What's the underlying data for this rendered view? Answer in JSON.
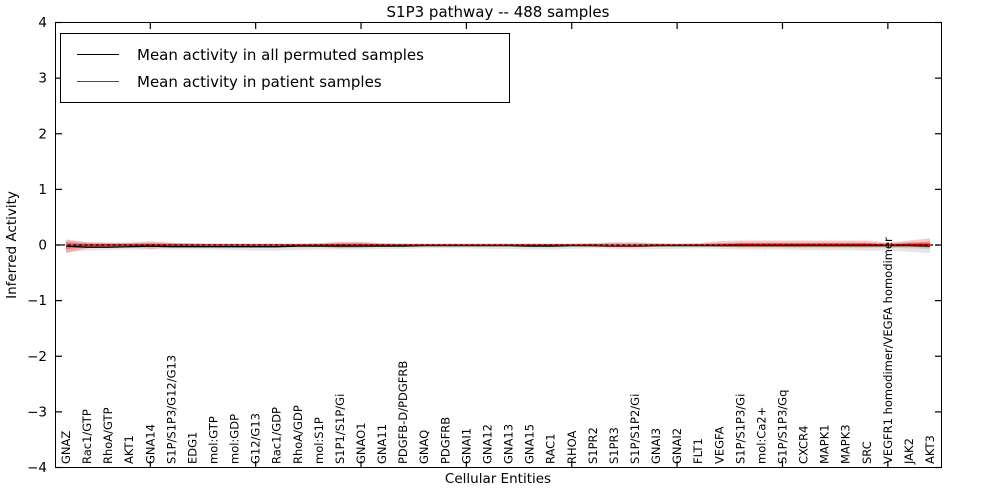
{
  "title": "S1P3 pathway -- 488 samples",
  "xlabel": "Cellular Entities",
  "ylabel": "Inferred Activity",
  "legend": {
    "items": [
      {
        "label": "Mean activity in all permuted samples",
        "color": "#000000"
      },
      {
        "label": "Mean activity in patient samples",
        "color": "#ff0000"
      }
    ]
  },
  "colors": {
    "permuted_line": "#000000",
    "patient_line": "#ff0000",
    "permuted_band_fill": "rgba(0,0,0,0.10)",
    "patient_band_fill": "rgba(255,0,0,0.22)",
    "patient_band_inner_fill": "rgba(255,0,0,0.28)",
    "axis": "#000000",
    "background": "#ffffff"
  },
  "chart_data": {
    "type": "line",
    "title": "S1P3 pathway -- 488 samples",
    "xlabel": "Cellular Entities",
    "ylabel": "Inferred Activity",
    "ylim": [
      -4,
      4
    ],
    "yticks": [
      4,
      3,
      2,
      1,
      0,
      -1,
      -2,
      -3,
      -4
    ],
    "ytick_labels": [
      "4",
      "3",
      "2",
      "1",
      "0",
      "−1",
      "−2",
      "−3",
      "−4"
    ],
    "x_major_tick_indices": [
      4,
      9,
      14,
      19,
      24,
      29,
      34,
      39
    ],
    "zero_reference_line": "dashed",
    "legend_position": "upper left",
    "grid": false,
    "categories": [
      "GNAZ",
      "Rac1/GTP",
      "RhoA/GTP",
      "AKT1",
      "GNA14",
      "S1P/S1P3/G12/G13",
      "EDG1",
      "mol:GTP",
      "mol:GDP",
      "G12/G13",
      "Rac1/GDP",
      "RhoA/GDP",
      "mol:S1P",
      "S1P1/S1P/Gi",
      "GNAO1",
      "GNA11",
      "PDGFB-D/PDGFRB",
      "GNAQ",
      "PDGFRB",
      "GNAI1",
      "GNA12",
      "GNA13",
      "GNA15",
      "RAC1",
      "RHOA",
      "S1PR2",
      "S1PR3",
      "S1P/S1P2/Gi",
      "GNAI3",
      "GNAI2",
      "FLT1",
      "VEGFA",
      "S1P/S1P3/Gi",
      "mol:Ca2+",
      "S1P/S1P3/Gq",
      "CXCR4",
      "MAPK1",
      "MAPK3",
      "SRC",
      "VEGFR1 homodimer/VEGFA homodimer",
      "JAK2",
      "AKT3"
    ],
    "series": [
      {
        "name": "Mean activity in all permuted samples",
        "color": "#000000",
        "values": [
          -0.02,
          -0.04,
          -0.04,
          -0.03,
          -0.02,
          -0.03,
          -0.03,
          -0.03,
          -0.03,
          -0.03,
          -0.03,
          -0.02,
          -0.02,
          -0.02,
          -0.02,
          -0.02,
          -0.02,
          -0.01,
          -0.01,
          -0.01,
          -0.01,
          -0.01,
          -0.02,
          -0.02,
          -0.01,
          -0.01,
          -0.02,
          -0.02,
          -0.01,
          -0.01,
          -0.01,
          -0.01,
          -0.01,
          -0.01,
          -0.01,
          -0.01,
          -0.01,
          -0.01,
          -0.01,
          -0.01,
          -0.01,
          -0.02
        ],
        "band_upper": [
          0.08,
          0.05,
          0.04,
          0.04,
          0.04,
          0.04,
          0.03,
          0.03,
          0.03,
          0.03,
          0.03,
          0.03,
          0.03,
          0.04,
          0.04,
          0.03,
          0.03,
          0.03,
          0.03,
          0.03,
          0.03,
          0.03,
          0.03,
          0.03,
          0.03,
          0.03,
          0.03,
          0.03,
          0.03,
          0.03,
          0.03,
          0.03,
          0.04,
          0.04,
          0.04,
          0.04,
          0.04,
          0.04,
          0.04,
          0.04,
          0.05,
          0.06
        ],
        "band_lower": [
          -0.13,
          -0.1,
          -0.09,
          -0.08,
          -0.08,
          -0.08,
          -0.08,
          -0.08,
          -0.09,
          -0.1,
          -0.1,
          -0.09,
          -0.08,
          -0.08,
          -0.08,
          -0.07,
          -0.07,
          -0.06,
          -0.06,
          -0.06,
          -0.07,
          -0.07,
          -0.08,
          -0.08,
          -0.07,
          -0.06,
          -0.07,
          -0.08,
          -0.07,
          -0.07,
          -0.06,
          -0.07,
          -0.08,
          -0.08,
          -0.08,
          -0.09,
          -0.09,
          -0.09,
          -0.1,
          -0.1,
          -0.12,
          -0.15
        ]
      },
      {
        "name": "Mean activity in patient samples",
        "color": "#ff0000",
        "values": [
          -0.01,
          0,
          0,
          0,
          0,
          0,
          0,
          0,
          0,
          0,
          0,
          0,
          0,
          0,
          0,
          0,
          0,
          0,
          0,
          0,
          0,
          0,
          0,
          0,
          0,
          0,
          -0.01,
          -0.01,
          0,
          0,
          0,
          0,
          0.01,
          0.01,
          0.01,
          0.01,
          0.01,
          0.01,
          0.01,
          0,
          0.01,
          0.01
        ],
        "band_upper": [
          0.1,
          0.05,
          0.04,
          0.04,
          0.07,
          0.04,
          0.03,
          0.02,
          0.02,
          0.02,
          0.02,
          0.02,
          0.03,
          0.06,
          0.06,
          0.03,
          0.02,
          0.02,
          0.02,
          0.02,
          0.02,
          0.02,
          0.02,
          0.02,
          0.02,
          0.03,
          0.05,
          0.05,
          0.03,
          0.02,
          0.03,
          0.07,
          0.08,
          0.08,
          0.08,
          0.08,
          0.08,
          0.08,
          0.08,
          0.04,
          0.08,
          0.12
        ],
        "band_lower": [
          -0.15,
          -0.06,
          -0.04,
          -0.04,
          -0.07,
          -0.04,
          -0.03,
          -0.02,
          -0.02,
          -0.02,
          -0.02,
          -0.02,
          -0.03,
          -0.06,
          -0.05,
          -0.03,
          -0.02,
          -0.02,
          -0.02,
          -0.02,
          -0.02,
          -0.02,
          -0.02,
          -0.02,
          -0.02,
          -0.03,
          -0.04,
          -0.04,
          -0.03,
          -0.02,
          -0.02,
          -0.03,
          -0.04,
          -0.04,
          -0.04,
          -0.04,
          -0.04,
          -0.04,
          -0.04,
          -0.03,
          -0.03,
          -0.05
        ]
      }
    ]
  }
}
